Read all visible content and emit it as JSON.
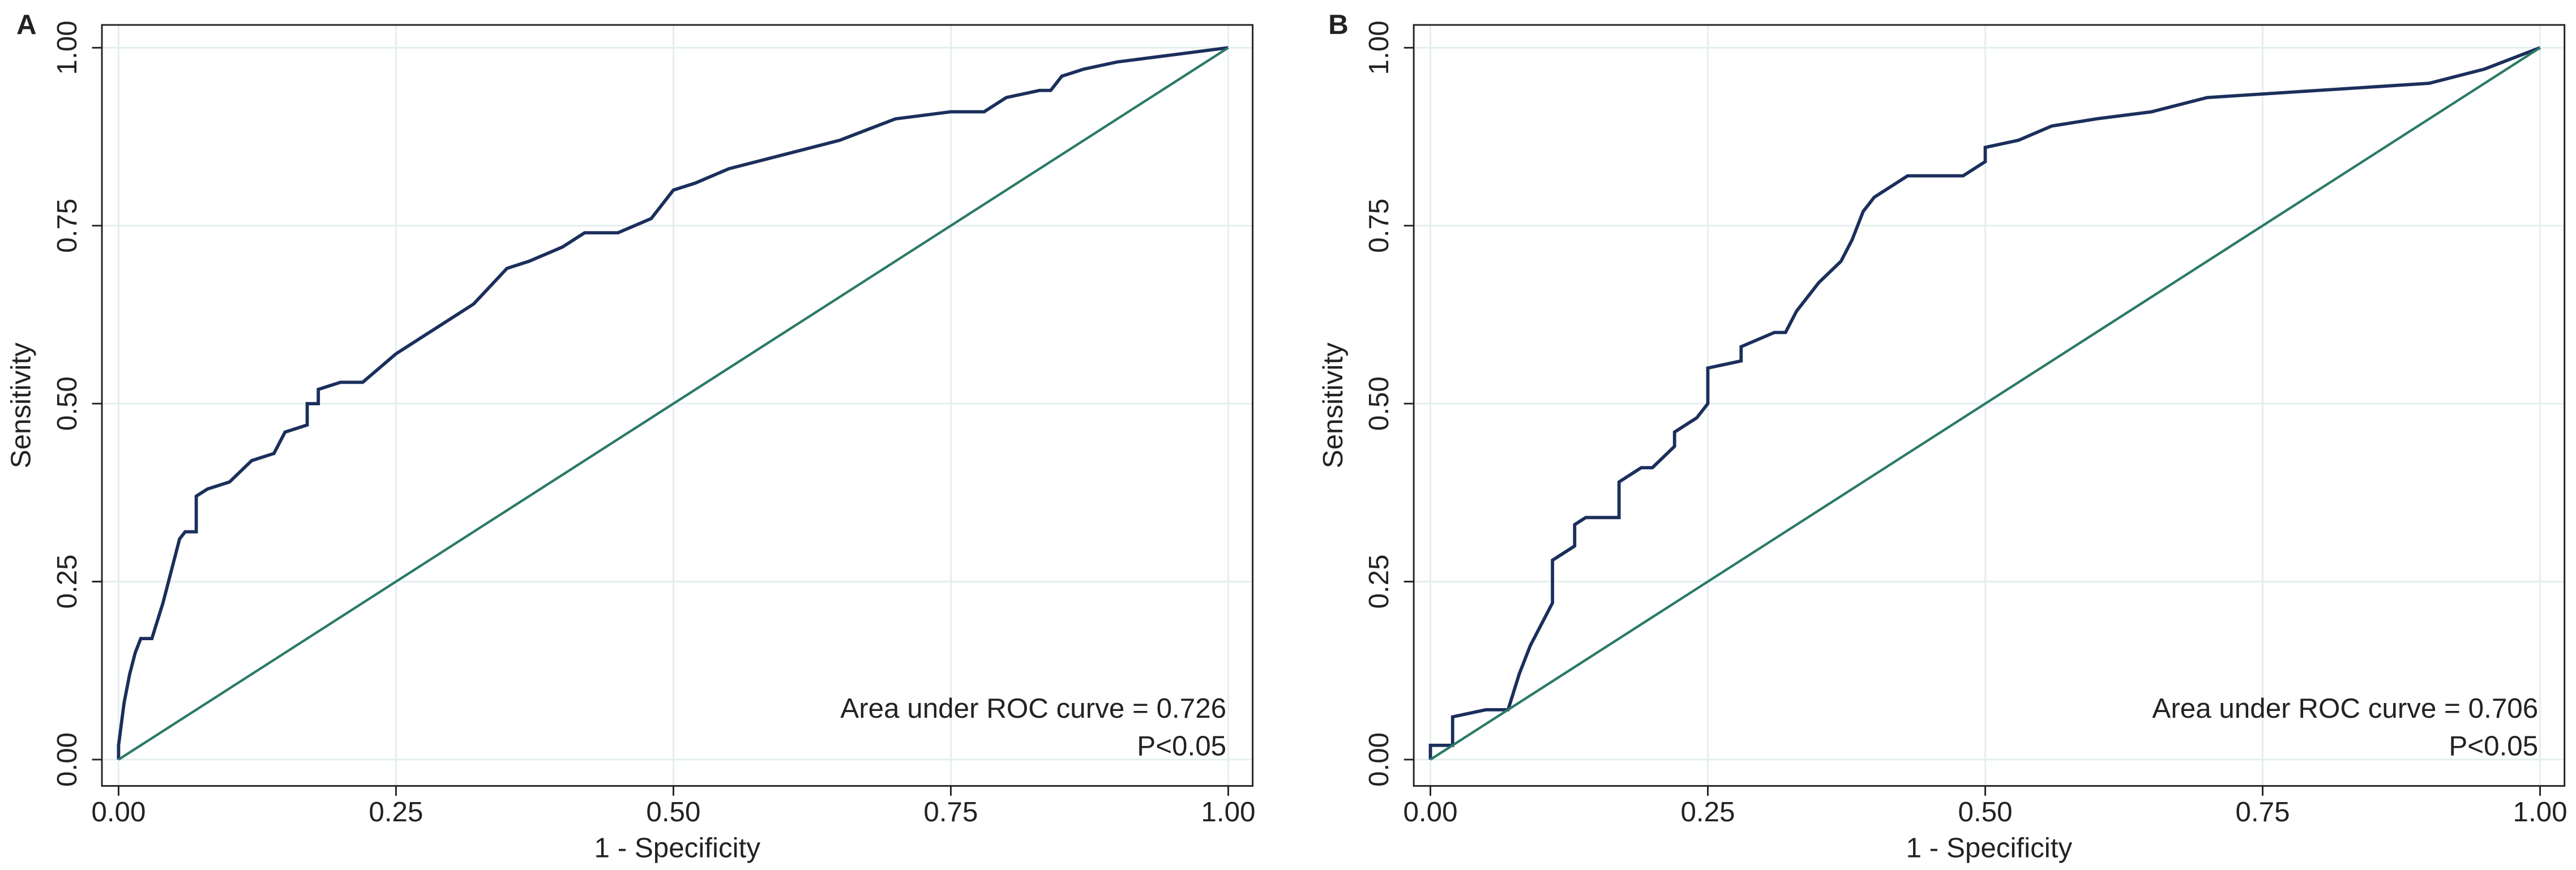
{
  "chart_data": [
    {
      "type": "line",
      "panel": "A",
      "xlabel": "1 - Specificity",
      "ylabel": "Sensitivity",
      "annotations": [
        "Area under ROC curve = 0.726",
        "P<0.05"
      ],
      "xlim": [
        -0.015,
        1.022
      ],
      "ylim": [
        -0.037,
        1.032
      ],
      "xticks": [
        {
          "value": 0,
          "label": "0.00"
        },
        {
          "value": 0.25,
          "label": "0.25"
        },
        {
          "value": 0.5,
          "label": "0.50"
        },
        {
          "value": 0.75,
          "label": "0.75"
        },
        {
          "value": 1,
          "label": "1.00"
        }
      ],
      "yticks": [
        {
          "value": 0,
          "label": "0.00"
        },
        {
          "value": 0.25,
          "label": "0.25"
        },
        {
          "value": 0.5,
          "label": "0.50"
        },
        {
          "value": 0.75,
          "label": "0.75"
        },
        {
          "value": 1,
          "label": "1.00"
        }
      ],
      "grid": true,
      "series": [
        {
          "color": "#1b2f5c",
          "x": [
            0,
            0,
            0.005,
            0.01,
            0.015,
            0.02,
            0.03,
            0.04,
            0.045,
            0.05,
            0.055,
            0.06,
            0.07,
            0.07,
            0.08,
            0.1,
            0.12,
            0.14,
            0.15,
            0.17,
            0.17,
            0.18,
            0.18,
            0.2,
            0.22,
            0.25,
            0.28,
            0.32,
            0.35,
            0.37,
            0.4,
            0.42,
            0.45,
            0.48,
            0.49,
            0.5,
            0.52,
            0.55,
            0.6,
            0.65,
            0.7,
            0.75,
            0.78,
            0.8,
            0.83,
            0.84,
            0.85,
            0.87,
            0.9,
            0.95,
            1
          ],
          "values": [
            0,
            0.02,
            0.08,
            0.12,
            0.15,
            0.17,
            0.17,
            0.22,
            0.25,
            0.28,
            0.31,
            0.32,
            0.32,
            0.37,
            0.38,
            0.39,
            0.42,
            0.43,
            0.46,
            0.47,
            0.5,
            0.5,
            0.52,
            0.53,
            0.53,
            0.57,
            0.6,
            0.64,
            0.69,
            0.7,
            0.72,
            0.74,
            0.74,
            0.76,
            0.78,
            0.8,
            0.81,
            0.83,
            0.85,
            0.87,
            0.9,
            0.91,
            0.91,
            0.93,
            0.94,
            0.94,
            0.96,
            0.97,
            0.98,
            0.99,
            1
          ]
        },
        {
          "color": "#2b7a68",
          "x": [
            0,
            1
          ],
          "values": [
            0,
            1
          ]
        }
      ]
    },
    {
      "type": "line",
      "panel": "B",
      "xlabel": "1 - Specificity",
      "ylabel": "Sensitivity",
      "annotations": [
        "Area under ROC curve = 0.706",
        "P<0.05"
      ],
      "xlim": [
        -0.015,
        1.022
      ],
      "ylim": [
        -0.037,
        1.032
      ],
      "xticks": [
        {
          "value": 0,
          "label": "0.00"
        },
        {
          "value": 0.25,
          "label": "0.25"
        },
        {
          "value": 0.5,
          "label": "0.50"
        },
        {
          "value": 0.75,
          "label": "0.75"
        },
        {
          "value": 1,
          "label": "1.00"
        }
      ],
      "yticks": [
        {
          "value": 0,
          "label": "0.00"
        },
        {
          "value": 0.25,
          "label": "0.25"
        },
        {
          "value": 0.5,
          "label": "0.50"
        },
        {
          "value": 0.75,
          "label": "0.75"
        },
        {
          "value": 1,
          "label": "1.00"
        }
      ],
      "grid": true,
      "series": [
        {
          "color": "#1b2f5c",
          "x": [
            0,
            0,
            0.02,
            0.02,
            0.05,
            0.07,
            0.08,
            0.09,
            0.1,
            0.11,
            0.11,
            0.13,
            0.13,
            0.14,
            0.17,
            0.17,
            0.19,
            0.2,
            0.22,
            0.22,
            0.24,
            0.25,
            0.25,
            0.28,
            0.28,
            0.31,
            0.32,
            0.33,
            0.34,
            0.35,
            0.37,
            0.38,
            0.39,
            0.4,
            0.41,
            0.43,
            0.48,
            0.5,
            0.5,
            0.53,
            0.56,
            0.6,
            0.65,
            0.7,
            0.8,
            0.9,
            0.95,
            1
          ],
          "values": [
            0,
            0.02,
            0.02,
            0.06,
            0.07,
            0.07,
            0.12,
            0.16,
            0.19,
            0.22,
            0.28,
            0.3,
            0.33,
            0.34,
            0.34,
            0.39,
            0.41,
            0.41,
            0.44,
            0.46,
            0.48,
            0.5,
            0.55,
            0.56,
            0.58,
            0.6,
            0.6,
            0.63,
            0.65,
            0.67,
            0.7,
            0.73,
            0.77,
            0.79,
            0.8,
            0.82,
            0.82,
            0.84,
            0.86,
            0.87,
            0.89,
            0.9,
            0.91,
            0.93,
            0.94,
            0.95,
            0.97,
            1
          ]
        },
        {
          "color": "#2b7a68",
          "x": [
            0,
            1
          ],
          "values": [
            0,
            1
          ]
        }
      ]
    }
  ]
}
